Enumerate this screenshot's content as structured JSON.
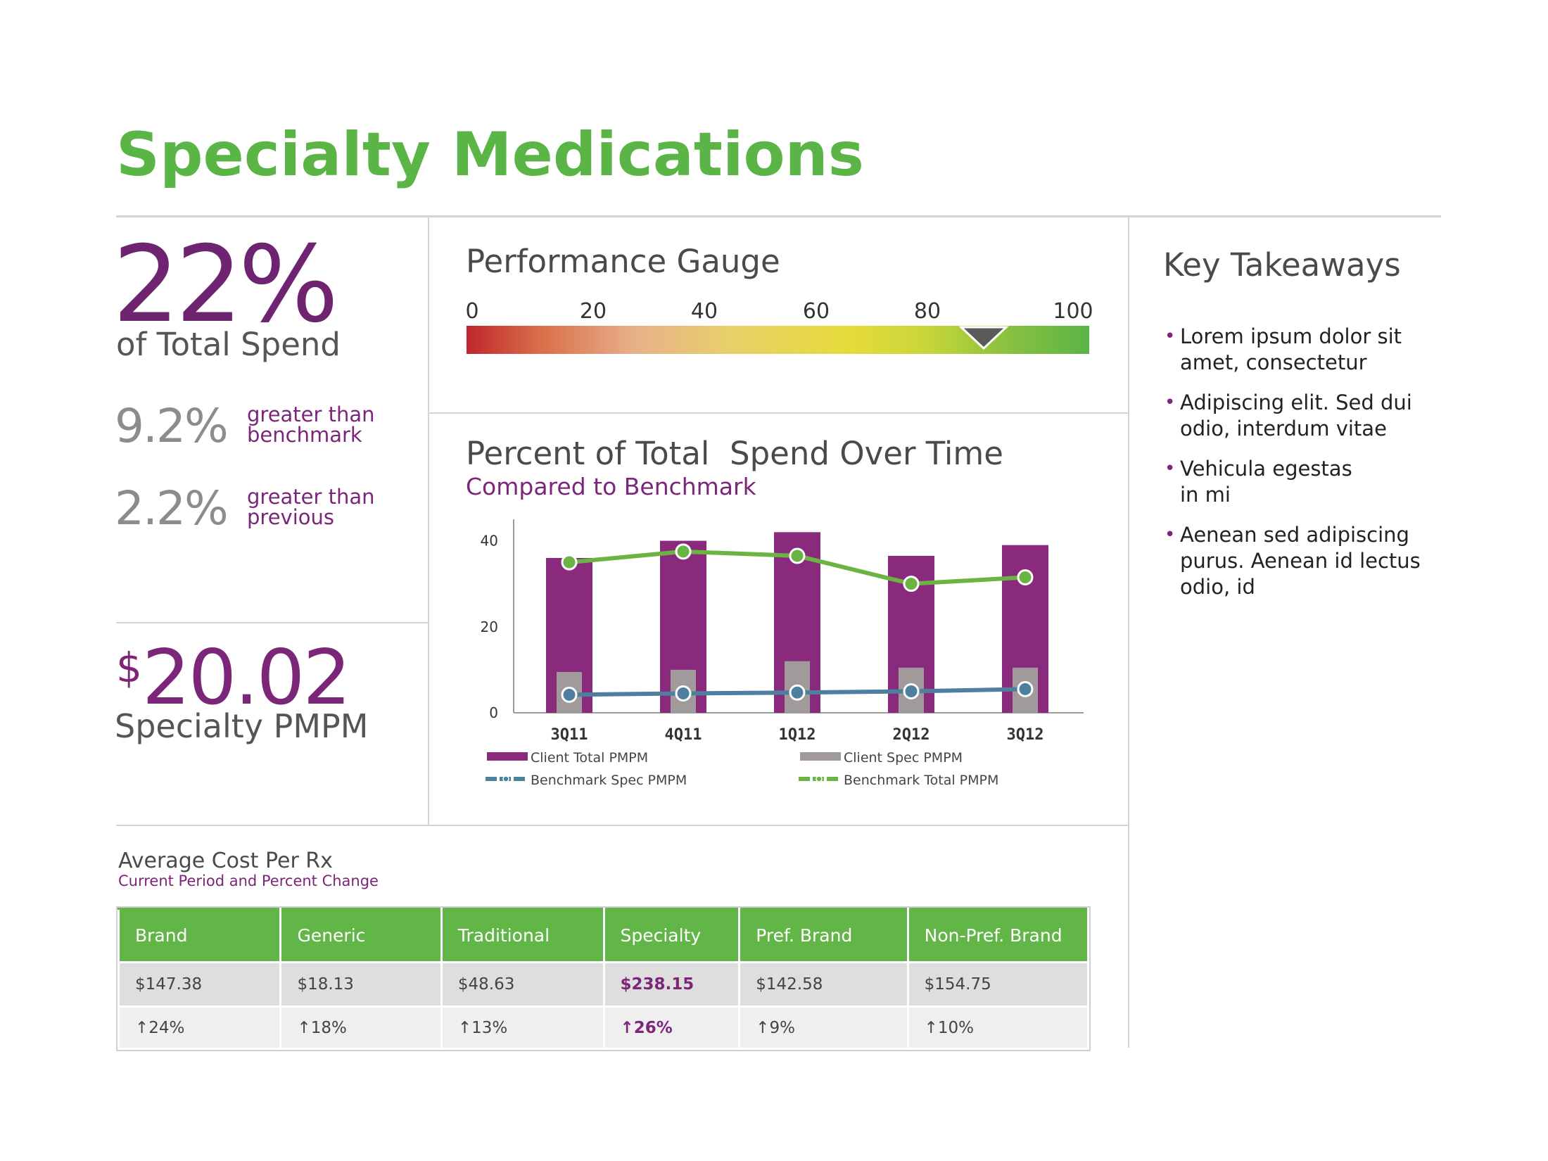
{
  "page": {
    "title": "Specialty Medications"
  },
  "summary": {
    "total_spend_pct": "22%",
    "total_spend_label": "of Total Spend",
    "stats": [
      {
        "value": "9.2%",
        "label_line1": "greater than",
        "label_line2": "benchmark"
      },
      {
        "value": "2.2%",
        "label_line1": "greater than",
        "label_line2": "previous"
      }
    ],
    "pmpm_currency": "$",
    "pmpm_value": "20.02",
    "pmpm_label": "Specialty PMPM"
  },
  "gauge": {
    "title": "Performance Gauge",
    "ticks": [
      "0",
      "20",
      "40",
      "60",
      "80",
      "100"
    ],
    "value": 83,
    "min": 0,
    "max": 100
  },
  "spend_chart": {
    "title": "Percent of Total  Spend Over Time",
    "subtitle": "Compared to Benchmark"
  },
  "chart_data": {
    "type": "bar",
    "title": "Percent of Total  Spend Over Time",
    "subtitle": "Compared to Benchmark",
    "categories": [
      "3Q11",
      "4Q11",
      "1Q12",
      "2Q12",
      "3Q12"
    ],
    "y_ticks": [
      "0",
      "20",
      "40"
    ],
    "ylim": [
      0,
      45
    ],
    "series": [
      {
        "name": "Client Total PMPM",
        "kind": "bar",
        "color": "#8a2a7d",
        "values": [
          36,
          40,
          42,
          36.5,
          39
        ]
      },
      {
        "name": "Client Spec PMPM",
        "kind": "bar",
        "color": "#a09a9a",
        "values": [
          9.5,
          10,
          12,
          10.5,
          10.5
        ]
      },
      {
        "name": "Benchmark Spec PMPM",
        "kind": "line",
        "color": "#4f7f9e",
        "values": [
          4.2,
          4.5,
          4.7,
          5,
          5.5
        ]
      },
      {
        "name": "Benchmark Total PMPM",
        "kind": "line",
        "color": "#6bb444",
        "values": [
          35,
          37.5,
          36.5,
          30,
          31.5
        ]
      }
    ],
    "legend": [
      "Client Total PMPM",
      "Client Spec PMPM",
      "Benchmark Spec PMPM",
      "Benchmark Total PMPM"
    ]
  },
  "takeaways": {
    "title": "Key Takeaways",
    "items": [
      {
        "line1": "Lorem ipsum dolor sit",
        "line2": "amet, consectetur"
      },
      {
        "line1": "Adipiscing elit. Sed dui",
        "line2": "odio, interdum vitae"
      },
      {
        "line1": "Vehicula egestas",
        "line2": "in mi"
      },
      {
        "line1": "Aenean sed adipiscing",
        "line2": "purus. Aenean id lectus",
        "line3": "odio, id"
      }
    ]
  },
  "cost_table": {
    "title": "Average Cost Per Rx",
    "subtitle": "Current Period and Percent Change",
    "headers": [
      "Brand",
      "Generic",
      "Traditional",
      "Specialty",
      "Pref. Brand",
      "Non-Pref. Brand"
    ],
    "values": [
      "$147.38",
      "$18.13",
      "$48.63",
      "$238.15",
      "$142.58",
      "$154.75"
    ],
    "changes": [
      "↑24%",
      "↑18%",
      "↑13%",
      "↑26%",
      "↑9%",
      "↑10%"
    ]
  }
}
